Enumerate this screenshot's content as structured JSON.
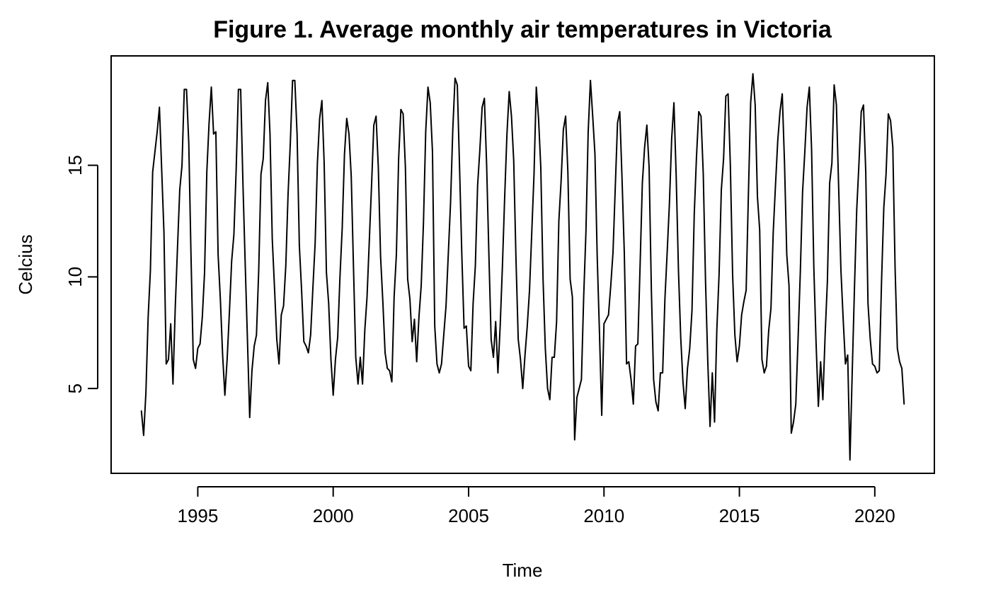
{
  "chart_data": {
    "type": "line",
    "title": "Figure 1. Average monthly air temperatures in Victoria",
    "xlabel": "Time",
    "ylabel": "Celcius",
    "xlim": [
      1991.8,
      2022.2
    ],
    "ylim": [
      1.2,
      19.9
    ],
    "x_ticks": [
      1995,
      2000,
      2005,
      2010,
      2015,
      2020
    ],
    "x_tick_labels": [
      "1995",
      "2000",
      "2005",
      "2010",
      "2015",
      "2020"
    ],
    "y_ticks": [
      5,
      10,
      15
    ],
    "y_tick_labels": [
      "5",
      "10",
      "15"
    ],
    "grid": false,
    "legend": "none",
    "series": [
      {
        "name": "Average monthly air temperature",
        "color": "#000000",
        "start": 1992.917,
        "step": 0.08333,
        "values": [
          4.0,
          2.9,
          4.8,
          8.2,
          10.3,
          14.7,
          15.6,
          16.5,
          17.6,
          14.8,
          12.0,
          6.1,
          6.3,
          7.9,
          5.2,
          8.6,
          11.3,
          13.9,
          15.0,
          18.4,
          18.4,
          16.0,
          10.9,
          6.3,
          5.9,
          6.8,
          7.0,
          8.2,
          10.2,
          14.7,
          16.9,
          18.5,
          16.4,
          16.5,
          11.0,
          9.0,
          6.5,
          4.7,
          6.3,
          8.4,
          10.7,
          11.9,
          14.8,
          18.4,
          18.4,
          14.2,
          10.6,
          7.2,
          3.7,
          5.8,
          6.9,
          7.4,
          10.3,
          14.6,
          15.3,
          17.9,
          18.7,
          16.4,
          11.7,
          9.5,
          7.2,
          6.1,
          8.3,
          8.7,
          10.5,
          13.7,
          16.0,
          18.8,
          18.8,
          16.4,
          11.4,
          9.4,
          7.1,
          6.9,
          6.6,
          7.4,
          9.5,
          11.5,
          15.1,
          17.1,
          17.9,
          15.1,
          10.2,
          8.8,
          6.3,
          4.7,
          6.3,
          7.3,
          10.0,
          12.2,
          15.5,
          17.1,
          16.4,
          14.5,
          10.4,
          6.4,
          5.2,
          6.4,
          5.2,
          7.6,
          9.1,
          11.6,
          14.1,
          16.8,
          17.2,
          14.9,
          10.9,
          8.9,
          6.6,
          5.9,
          5.8,
          5.3,
          9.1,
          11.0,
          15.3,
          17.5,
          17.3,
          14.9,
          9.9,
          9.0,
          7.1,
          8.1,
          6.2,
          8.2,
          9.6,
          12.4,
          16.5,
          18.5,
          17.8,
          15.6,
          7.8,
          6.1,
          5.7,
          6.1,
          7.4,
          8.7,
          11.0,
          13.3,
          16.6,
          18.9,
          18.6,
          14.9,
          11.0,
          7.7,
          7.8,
          6.0,
          5.8,
          8.8,
          10.5,
          14.1,
          15.7,
          17.6,
          18.0,
          15.0,
          11.0,
          7.2,
          6.4,
          8.0,
          5.7,
          7.8,
          10.5,
          13.6,
          16.4,
          18.3,
          17.2,
          15.2,
          10.8,
          7.2,
          6.3,
          5.0,
          6.5,
          7.8,
          9.4,
          12.0,
          14.6,
          18.5,
          17.1,
          14.9,
          9.9,
          6.8,
          5.0,
          4.5,
          6.4,
          6.4,
          8.0,
          12.5,
          14.3,
          16.6,
          17.2,
          14.7,
          9.9,
          9.1,
          2.7,
          4.6,
          5.0,
          5.4,
          9.1,
          12.0,
          16.5,
          18.8,
          17.2,
          15.5,
          10.9,
          7.5,
          3.8,
          7.9,
          8.1,
          8.3,
          9.6,
          11.1,
          14.0,
          16.9,
          17.4,
          14.4,
          11.1,
          6.1,
          6.2,
          5.4,
          4.3,
          6.9,
          7.0,
          10.5,
          14.2,
          15.8,
          16.8,
          14.9,
          9.4,
          5.4,
          4.4,
          4.0,
          5.7,
          5.7,
          9.0,
          11.1,
          13.3,
          16.2,
          17.8,
          14.5,
          10.3,
          7.3,
          5.3,
          4.1,
          5.9,
          6.8,
          8.5,
          12.8,
          15.4,
          17.4,
          17.2,
          14.6,
          9.8,
          6.2,
          3.3,
          5.7,
          3.5,
          7.6,
          10.1,
          13.9,
          15.3,
          18.1,
          18.2,
          15.0,
          10.1,
          7.4,
          6.2,
          6.9,
          8.3,
          8.9,
          9.4,
          13.7,
          17.8,
          19.1,
          17.7,
          13.6,
          12.1,
          6.3,
          5.7,
          6.0,
          7.6,
          8.6,
          12.0,
          14.1,
          16.1,
          17.4,
          18.2,
          15.1,
          11.0,
          9.6,
          3.0,
          3.5,
          4.3,
          7.2,
          10.2,
          13.8,
          15.6,
          17.6,
          18.5,
          15.7,
          10.4,
          7.0,
          4.2,
          6.2,
          4.5,
          7.4,
          9.8,
          14.2,
          15.1,
          18.6,
          17.7,
          14.0,
          10.3,
          8.1,
          6.1,
          6.5,
          1.8,
          5.7,
          9.5,
          13.0,
          15.1,
          17.4,
          17.7,
          14.7,
          8.8,
          7.2,
          6.1,
          6.0,
          5.7,
          5.8,
          9.8,
          13.1,
          14.6,
          17.3,
          17.0,
          15.8,
          10.4,
          6.8,
          6.2,
          5.9,
          4.3
        ]
      }
    ]
  }
}
